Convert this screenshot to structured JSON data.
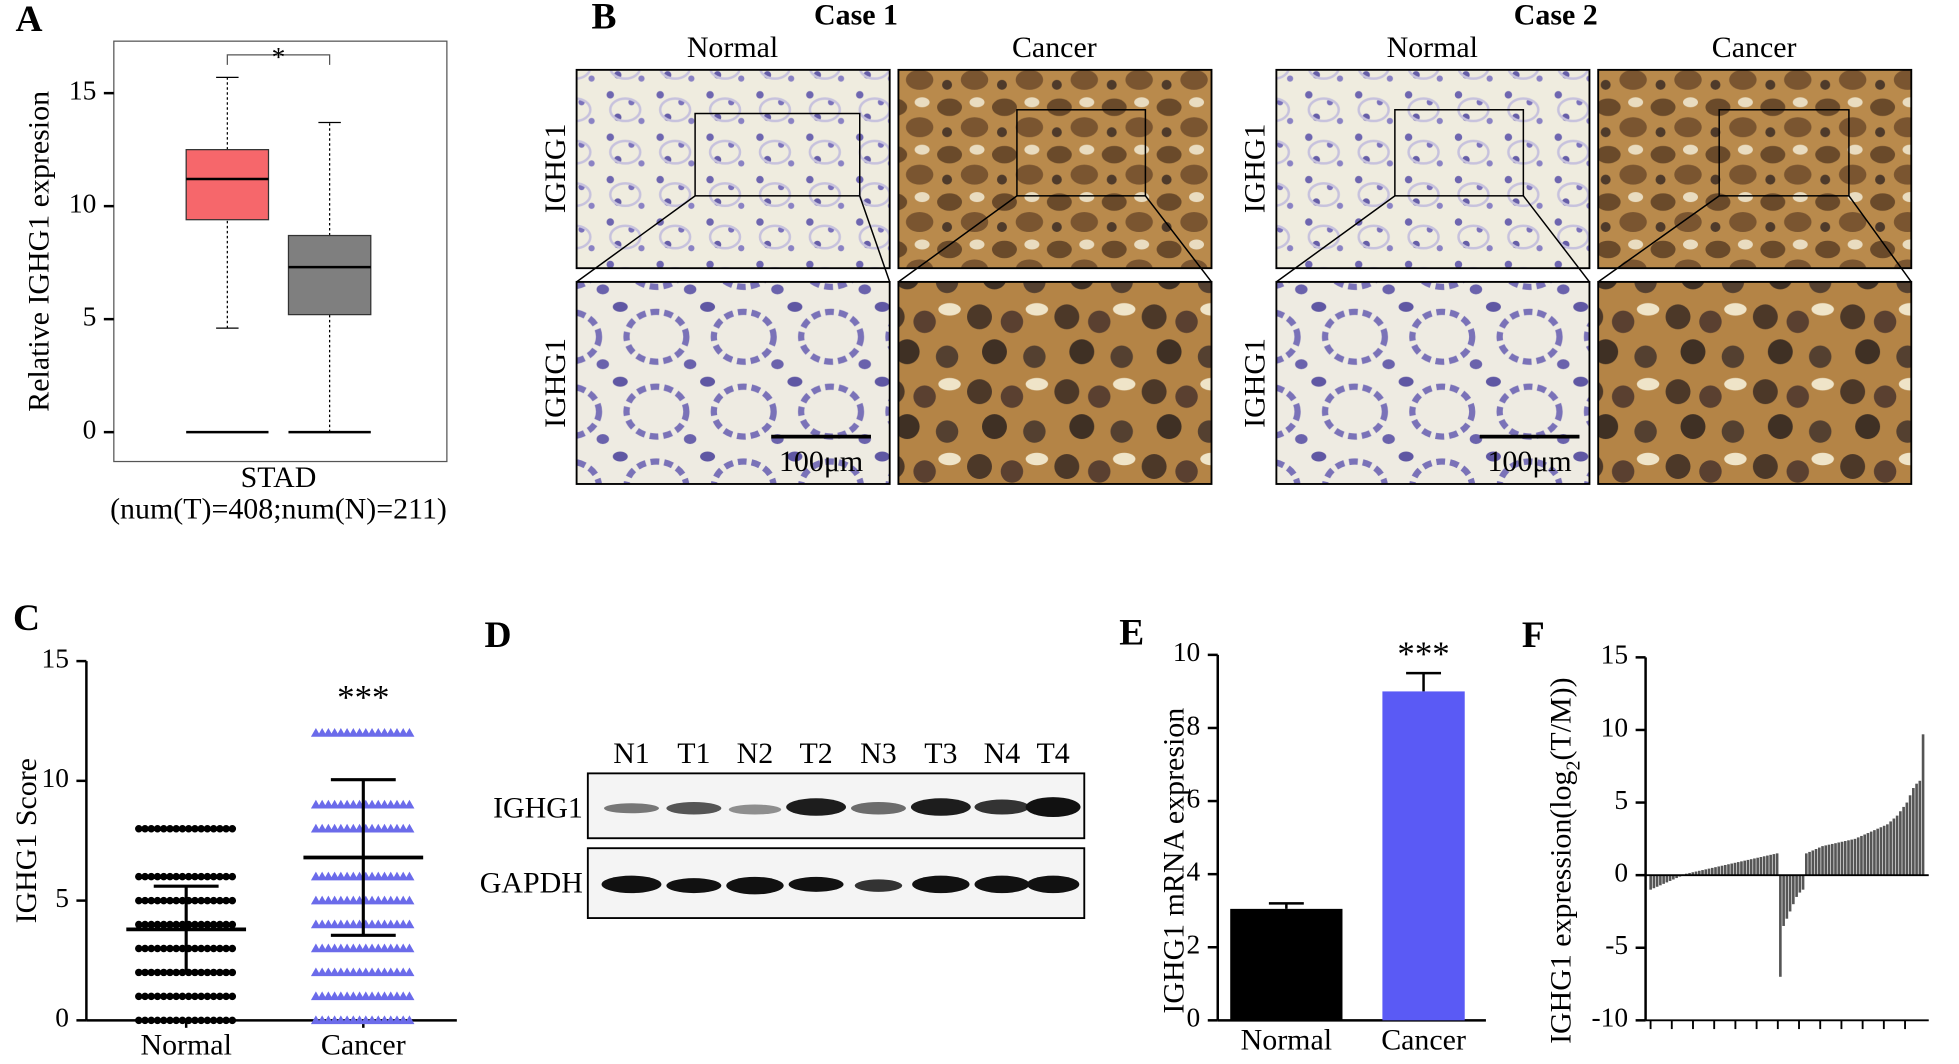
{
  "panel_labels": [
    "A",
    "B",
    "C",
    "D",
    "E",
    "F"
  ],
  "chart_data": [
    {
      "type": "box",
      "ylabel": "Relative IGHG1 expresion",
      "xlabel": "STAD",
      "xlabel2": "(num(T)=408;num(N)=211)",
      "annotation": "*",
      "ylim": [
        -1.3,
        17.3
      ],
      "yticks": [
        0,
        5,
        10,
        15
      ],
      "boxes": [
        {
          "color": "#f6676b",
          "whislo": 4.6,
          "q1": 9.4,
          "med": 11.2,
          "q3": 12.5,
          "whishi": 15.7
        },
        {
          "color": "#7f7f7f",
          "whislo": 0,
          "q1": 5.2,
          "med": 7.3,
          "q3": 8.7,
          "whishi": 13.7
        }
      ]
    },
    {
      "type": "dot",
      "ylabel": "IGHG1 Score",
      "categories": [
        "Normal",
        "Cancer"
      ],
      "annotation": "***",
      "ylim": [
        0,
        15
      ],
      "yticks": [
        0,
        5,
        10,
        15
      ],
      "groups": [
        {
          "color": "#000000",
          "marker": "circle",
          "mean": 3.8,
          "sd": 1.8,
          "values": [
            0,
            1,
            2,
            3,
            4,
            5,
            6,
            8
          ]
        },
        {
          "color": "#6b6bea",
          "marker": "triangle",
          "mean": 6.8,
          "sd": 3.25,
          "values": [
            0,
            1,
            2,
            3,
            4,
            5,
            6,
            8,
            9,
            12
          ]
        }
      ]
    },
    {
      "type": "bar",
      "ylabel": "IGHG1 mRNA expresion",
      "categories": [
        "Normal",
        "Cancer"
      ],
      "annotation": "***",
      "values": [
        3.05,
        9.0
      ],
      "errors": [
        0.15,
        0.5
      ],
      "colors": [
        "#000000",
        "#5a5af5"
      ],
      "ylim": [
        0,
        10
      ],
      "yticks": [
        0,
        2,
        4,
        6,
        8,
        10
      ]
    },
    {
      "type": "waterfall",
      "ylabel_parts": [
        "IGHG1 expression(log",
        "2",
        "(T/M))"
      ],
      "color": "#555555",
      "ylim": [
        -10,
        15
      ],
      "yticks": [
        -10,
        -5,
        0,
        5,
        10,
        15
      ],
      "values": [
        -1.0,
        -0.9,
        -0.8,
        -0.7,
        -0.6,
        -0.5,
        -0.4,
        -0.3,
        -0.2,
        -0.1,
        0.05,
        0.1,
        0.15,
        0.2,
        0.25,
        0.3,
        0.35,
        0.4,
        0.45,
        0.5,
        0.55,
        0.6,
        0.65,
        0.7,
        0.75,
        0.8,
        0.85,
        0.9,
        0.95,
        1.0,
        1.05,
        1.1,
        1.15,
        1.2,
        1.25,
        1.3,
        1.35,
        1.4,
        1.45,
        1.5,
        -7.0,
        -3.5,
        -3.0,
        -2.5,
        -2.0,
        -1.5,
        -1.2,
        -1.0,
        1.5,
        1.6,
        1.7,
        1.8,
        1.9,
        2.0,
        2.05,
        2.1,
        2.15,
        2.2,
        2.25,
        2.3,
        2.35,
        2.4,
        2.45,
        2.5,
        2.6,
        2.7,
        2.8,
        2.9,
        3.0,
        3.1,
        3.2,
        3.3,
        3.4,
        3.5,
        3.7,
        3.9,
        4.1,
        4.4,
        4.7,
        5.0,
        5.5,
        6.0,
        6.3,
        6.5,
        9.7
      ]
    }
  ],
  "panel_b": {
    "cases": [
      {
        "title": "Case 1",
        "columns": [
          "Normal",
          "Cancer"
        ],
        "row_labels": [
          "IGHG1",
          "IGHG1"
        ],
        "scale_bar": "100μm"
      },
      {
        "title": "Case 2",
        "columns": [
          "Normal",
          "Cancer"
        ],
        "row_labels": [
          "IGHG1",
          "IGHG1"
        ],
        "scale_bar": "100μm"
      }
    ]
  },
  "panel_d": {
    "lanes": [
      "N1",
      "T1",
      "N2",
      "T2",
      "N3",
      "T3",
      "N4",
      "T4"
    ],
    "rows": [
      "IGHG1",
      "GAPDH"
    ]
  }
}
